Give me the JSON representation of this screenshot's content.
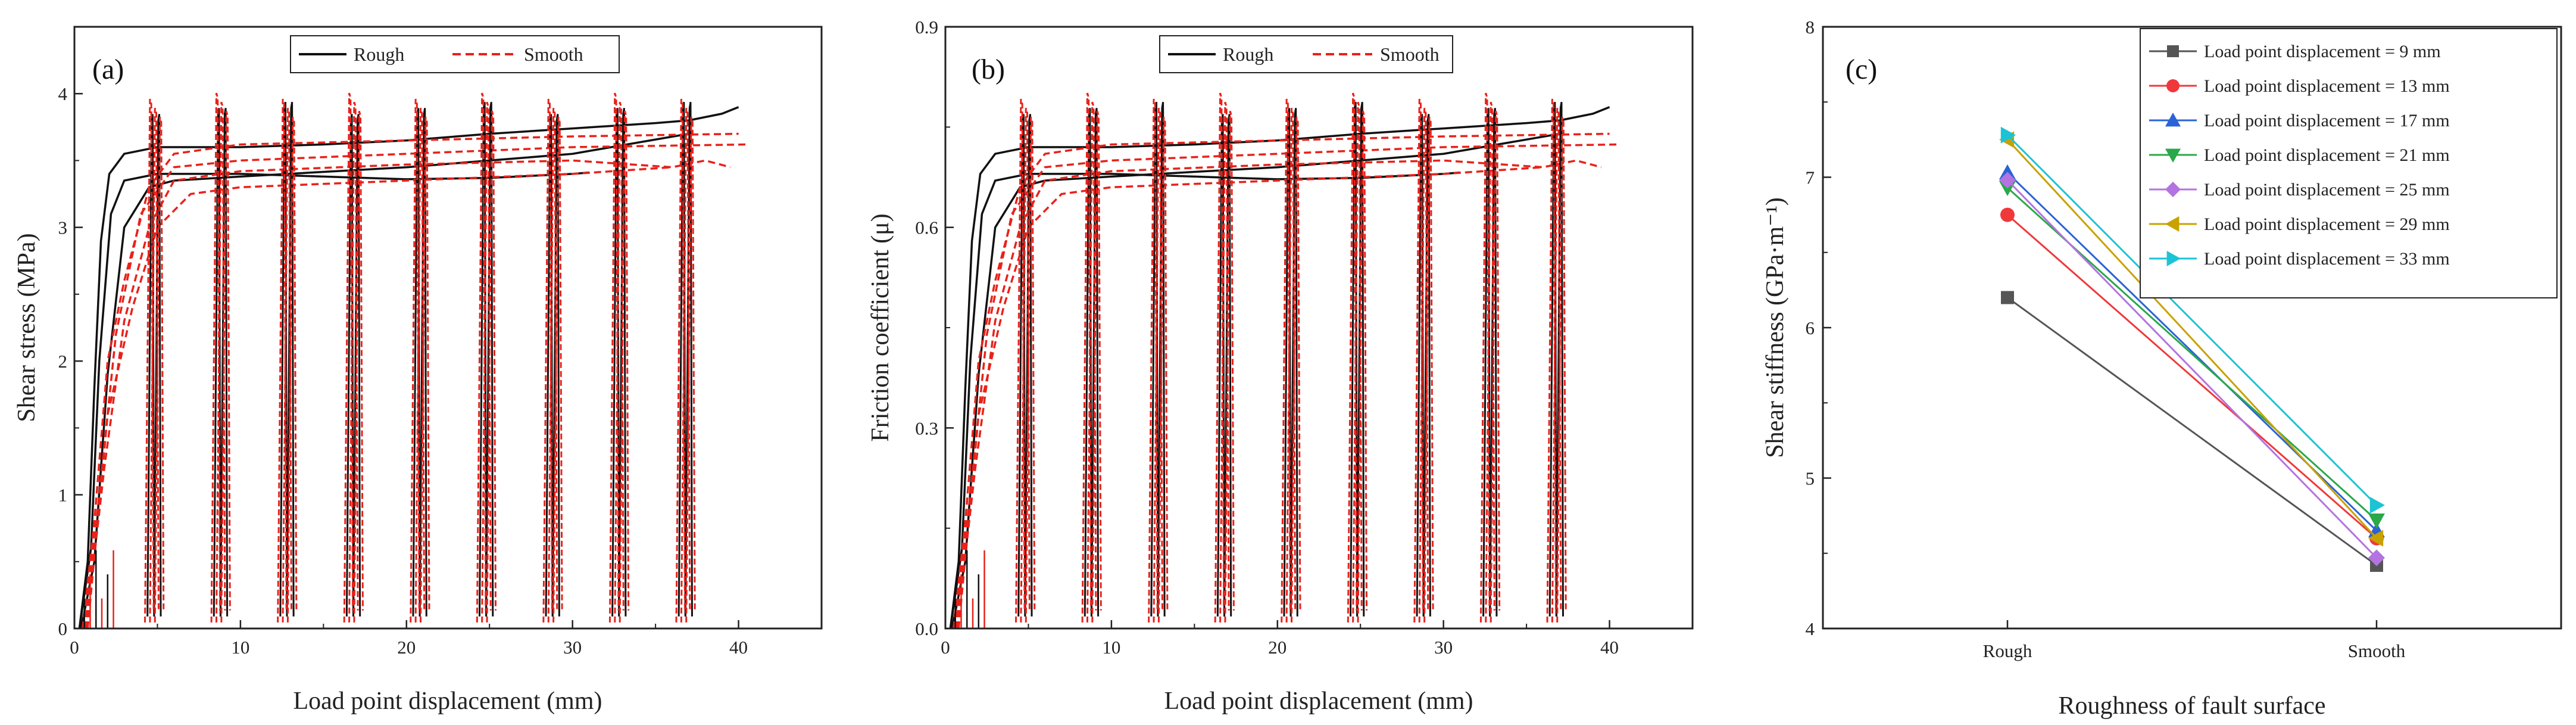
{
  "chart_data": [
    {
      "type": "line",
      "panel_label": "(a)",
      "xlabel": "Load point displacement (mm)",
      "ylabel": "Shear stress (MPa)",
      "xlim": [
        0,
        45
      ],
      "ylim": [
        0,
        4.5
      ],
      "xticks": [
        0,
        10,
        20,
        30,
        40
      ],
      "yticks": [
        0,
        1,
        2,
        3,
        4
      ],
      "ytick_labels": [
        "0",
        "1",
        "2",
        "3",
        "4"
      ],
      "legend": [
        {
          "name": "Rough",
          "color": "#111111",
          "style": "solid"
        },
        {
          "name": "Smooth",
          "color": "#e8221b",
          "style": "dashed"
        }
      ],
      "series": [
        {
          "name": "Rough",
          "color": "#111111",
          "style": "solid",
          "points": [
            [
              0.3,
              0.0
            ],
            [
              0.8,
              0.5
            ],
            [
              1.2,
              1.8
            ],
            [
              1.6,
              2.9
            ],
            [
              2.1,
              3.4
            ],
            [
              3.0,
              3.55
            ],
            [
              5,
              3.6
            ],
            [
              10,
              3.6
            ],
            [
              15,
              3.62
            ],
            [
              20,
              3.65
            ],
            [
              25,
              3.7
            ],
            [
              30,
              3.74
            ],
            [
              35,
              3.78
            ],
            [
              37,
              3.8
            ],
            [
              39,
              3.85
            ],
            [
              40,
              3.9
            ]
          ]
        },
        {
          "name": "Rough",
          "color": "#111111",
          "style": "solid",
          "points": [
            [
              0.3,
              0.0
            ],
            [
              1.0,
              0.6
            ],
            [
              1.5,
              2.0
            ],
            [
              2.2,
              3.1
            ],
            [
              3.0,
              3.35
            ],
            [
              5,
              3.4
            ],
            [
              10,
              3.4
            ],
            [
              15,
              3.38
            ],
            [
              20,
              3.36
            ],
            [
              25,
              3.37
            ],
            [
              30,
              3.4
            ],
            [
              31,
              3.41
            ]
          ]
        },
        {
          "name": "Rough",
          "color": "#111111",
          "style": "solid",
          "points": [
            [
              0.4,
              0.0
            ],
            [
              1.2,
              0.5
            ],
            [
              2.0,
              1.9
            ],
            [
              3.0,
              3.0
            ],
            [
              4.5,
              3.3
            ],
            [
              6,
              3.35
            ],
            [
              10,
              3.38
            ],
            [
              20,
              3.45
            ],
            [
              30,
              3.55
            ],
            [
              37,
              3.7
            ]
          ]
        },
        {
          "name": "Smooth",
          "color": "#e8221b",
          "style": "dashed",
          "points": [
            [
              0.5,
              0.0
            ],
            [
              1.2,
              0.8
            ],
            [
              2.0,
              2.0
            ],
            [
              3.0,
              2.6
            ],
            [
              4.5,
              3.3
            ],
            [
              6,
              3.55
            ],
            [
              10,
              3.62
            ],
            [
              20,
              3.65
            ],
            [
              30,
              3.68
            ],
            [
              40,
              3.7
            ]
          ]
        },
        {
          "name": "Smooth",
          "color": "#e8221b",
          "style": "dashed",
          "points": [
            [
              0.6,
              0.0
            ],
            [
              1.5,
              1.0
            ],
            [
              2.5,
              2.2
            ],
            [
              4,
              3.1
            ],
            [
              6,
              3.45
            ],
            [
              10,
              3.5
            ],
            [
              20,
              3.55
            ],
            [
              30,
              3.6
            ],
            [
              40.5,
              3.62
            ]
          ]
        },
        {
          "name": "Smooth",
          "color": "#e8221b",
          "style": "dashed",
          "points": [
            [
              0.7,
              0.0
            ],
            [
              1.8,
              1.2
            ],
            [
              3,
              2.3
            ],
            [
              4.5,
              3.0
            ],
            [
              6,
              3.35
            ],
            [
              10,
              3.42
            ],
            [
              20,
              3.47
            ],
            [
              30,
              3.5
            ],
            [
              36,
              3.45
            ],
            [
              38,
              3.5
            ],
            [
              39.5,
              3.45
            ]
          ]
        },
        {
          "name": "Smooth",
          "color": "#e8221b",
          "style": "dashed",
          "points": [
            [
              0.8,
              0.0
            ],
            [
              2,
              1.6
            ],
            [
              3.5,
              2.4
            ],
            [
              5,
              3.0
            ],
            [
              7,
              3.25
            ],
            [
              10,
              3.3
            ],
            [
              20,
              3.35
            ],
            [
              30,
              3.4
            ],
            [
              36,
              3.45
            ]
          ]
        }
      ],
      "unload_cycles": [
        5,
        9,
        13,
        17,
        21,
        25,
        29,
        33,
        37
      ]
    },
    {
      "type": "line",
      "panel_label": "(b)",
      "xlabel": "Load point displacement (mm)",
      "ylabel": "Friction coefficient (μ)",
      "xlim": [
        0,
        45
      ],
      "ylim": [
        0,
        0.9
      ],
      "xticks": [
        0,
        10,
        20,
        30,
        40
      ],
      "yticks": [
        0,
        0.3,
        0.6,
        0.9
      ],
      "ytick_labels": [
        "0.0",
        "0.3",
        "0.6",
        "0.9"
      ],
      "legend": [
        {
          "name": "Rough",
          "color": "#111111",
          "style": "solid"
        },
        {
          "name": "Smooth",
          "color": "#e8221b",
          "style": "dashed"
        }
      ],
      "series": [
        {
          "name": "Rough",
          "color": "#111111",
          "style": "solid",
          "points": [
            [
              0.3,
              0.0
            ],
            [
              0.8,
              0.1
            ],
            [
              1.2,
              0.36
            ],
            [
              1.6,
              0.58
            ],
            [
              2.1,
              0.68
            ],
            [
              3.0,
              0.71
            ],
            [
              5,
              0.72
            ],
            [
              10,
              0.72
            ],
            [
              15,
              0.724
            ],
            [
              20,
              0.73
            ],
            [
              25,
              0.74
            ],
            [
              30,
              0.748
            ],
            [
              35,
              0.756
            ],
            [
              37,
              0.76
            ],
            [
              39,
              0.77
            ],
            [
              40,
              0.78
            ]
          ]
        },
        {
          "name": "Rough",
          "color": "#111111",
          "style": "solid",
          "points": [
            [
              0.3,
              0.0
            ],
            [
              1.0,
              0.12
            ],
            [
              1.5,
              0.4
            ],
            [
              2.2,
              0.62
            ],
            [
              3.0,
              0.67
            ],
            [
              5,
              0.68
            ],
            [
              10,
              0.68
            ],
            [
              15,
              0.676
            ],
            [
              20,
              0.672
            ],
            [
              25,
              0.674
            ],
            [
              30,
              0.68
            ],
            [
              31,
              0.682
            ]
          ]
        },
        {
          "name": "Rough",
          "color": "#111111",
          "style": "solid",
          "points": [
            [
              0.4,
              0.0
            ],
            [
              1.2,
              0.1
            ],
            [
              2.0,
              0.38
            ],
            [
              3.0,
              0.6
            ],
            [
              4.5,
              0.66
            ],
            [
              6,
              0.67
            ],
            [
              10,
              0.676
            ],
            [
              20,
              0.69
            ],
            [
              30,
              0.71
            ],
            [
              37,
              0.74
            ]
          ]
        },
        {
          "name": "Smooth",
          "color": "#e8221b",
          "style": "dashed",
          "points": [
            [
              0.5,
              0.0
            ],
            [
              1.2,
              0.16
            ],
            [
              2.0,
              0.4
            ],
            [
              3.0,
              0.52
            ],
            [
              4.5,
              0.66
            ],
            [
              6,
              0.71
            ],
            [
              10,
              0.724
            ],
            [
              20,
              0.73
            ],
            [
              30,
              0.736
            ],
            [
              40,
              0.74
            ]
          ]
        },
        {
          "name": "Smooth",
          "color": "#e8221b",
          "style": "dashed",
          "points": [
            [
              0.6,
              0.0
            ],
            [
              1.5,
              0.2
            ],
            [
              2.5,
              0.44
            ],
            [
              4,
              0.62
            ],
            [
              6,
              0.69
            ],
            [
              10,
              0.7
            ],
            [
              20,
              0.71
            ],
            [
              30,
              0.72
            ],
            [
              40.5,
              0.724
            ]
          ]
        },
        {
          "name": "Smooth",
          "color": "#e8221b",
          "style": "dashed",
          "points": [
            [
              0.7,
              0.0
            ],
            [
              1.8,
              0.24
            ],
            [
              3,
              0.46
            ],
            [
              4.5,
              0.6
            ],
            [
              6,
              0.67
            ],
            [
              10,
              0.684
            ],
            [
              20,
              0.694
            ],
            [
              30,
              0.7
            ],
            [
              36,
              0.69
            ],
            [
              38,
              0.7
            ],
            [
              39.5,
              0.69
            ]
          ]
        },
        {
          "name": "Smooth",
          "color": "#e8221b",
          "style": "dashed",
          "points": [
            [
              0.8,
              0.0
            ],
            [
              2,
              0.32
            ],
            [
              3.5,
              0.48
            ],
            [
              5,
              0.6
            ],
            [
              7,
              0.65
            ],
            [
              10,
              0.66
            ],
            [
              20,
              0.67
            ],
            [
              30,
              0.68
            ],
            [
              36,
              0.69
            ]
          ]
        }
      ],
      "unload_cycles": [
        5,
        9,
        13,
        17,
        21,
        25,
        29,
        33,
        37
      ]
    },
    {
      "type": "line",
      "panel_label": "(c)",
      "xlabel": "Roughness of fault surface",
      "ylabel": "Shear stiffness (GPa·m⁻¹)",
      "categories": [
        "Rough",
        "Smooth"
      ],
      "ylim": [
        4,
        8
      ],
      "yticks": [
        4,
        5,
        6,
        7,
        8
      ],
      "ytick_labels": [
        "4",
        "5",
        "6",
        "7",
        "8"
      ],
      "series": [
        {
          "name": "Load point displacement = 9 mm",
          "color": "#555555",
          "marker": "square",
          "values": [
            6.2,
            4.42
          ]
        },
        {
          "name": "Load point displacement = 13 mm",
          "color": "#f0383b",
          "marker": "circle",
          "values": [
            6.75,
            4.6
          ]
        },
        {
          "name": "Load point displacement = 17 mm",
          "color": "#2a63d6",
          "marker": "triangle-up",
          "values": [
            7.03,
            4.65
          ]
        },
        {
          "name": "Load point displacement = 21 mm",
          "color": "#2aa84a",
          "marker": "triangle-down",
          "values": [
            6.93,
            4.72
          ]
        },
        {
          "name": "Load point displacement = 25 mm",
          "color": "#b373e0",
          "marker": "diamond",
          "values": [
            6.98,
            4.47
          ]
        },
        {
          "name": "Load point displacement = 29 mm",
          "color": "#c9a100",
          "marker": "triangle-left",
          "values": [
            7.25,
            4.6
          ]
        },
        {
          "name": "Load point displacement = 33 mm",
          "color": "#1cc3d4",
          "marker": "triangle-right",
          "values": [
            7.28,
            4.82
          ]
        }
      ]
    }
  ]
}
